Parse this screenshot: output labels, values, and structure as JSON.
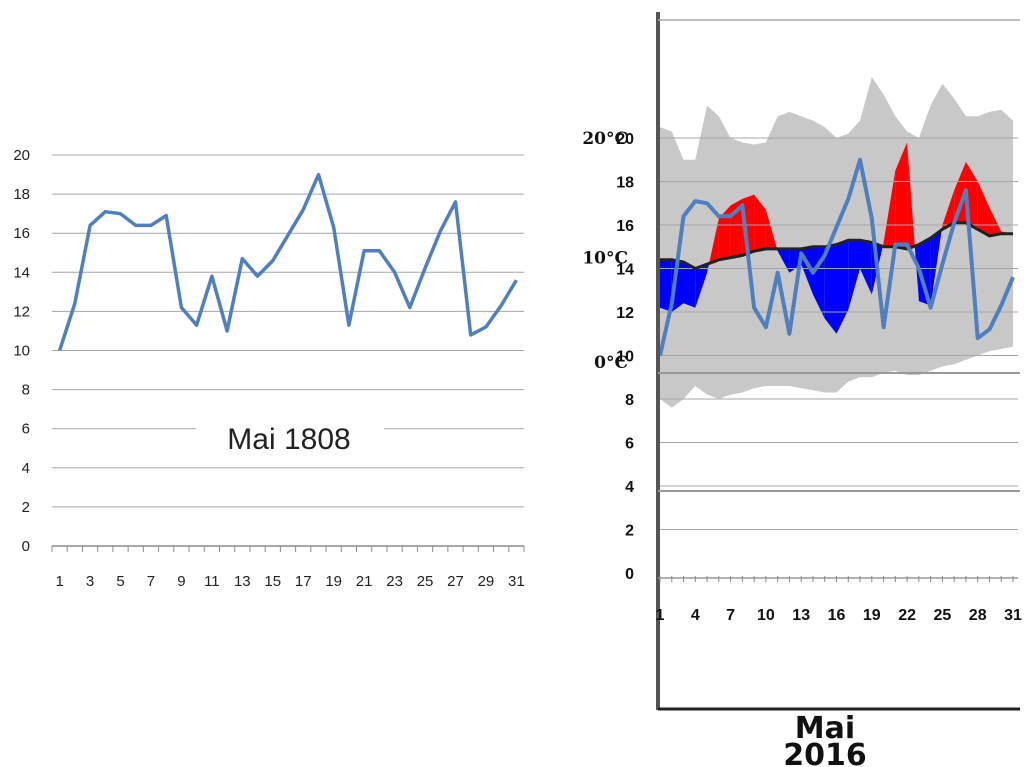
{
  "chart_data": [
    {
      "type": "line",
      "title": "Mai 1808",
      "x": [
        1,
        2,
        3,
        4,
        5,
        6,
        7,
        8,
        9,
        10,
        11,
        12,
        13,
        14,
        15,
        16,
        17,
        18,
        19,
        20,
        21,
        22,
        23,
        24,
        25,
        26,
        27,
        28,
        29,
        30,
        31
      ],
      "xticks": [
        1,
        3,
        5,
        7,
        9,
        11,
        13,
        15,
        17,
        19,
        21,
        23,
        25,
        27,
        29,
        31
      ],
      "yticks": [
        0,
        2,
        4,
        6,
        8,
        10,
        12,
        14,
        16,
        18,
        20
      ],
      "ylim": [
        0,
        20
      ],
      "grid": true,
      "colors": {
        "line": "#4f7fbf",
        "grid": "#a6a6a6"
      },
      "series": [
        {
          "values": [
            10,
            12.4,
            16.4,
            17.1,
            17,
            16.4,
            16.4,
            16.9,
            12.2,
            11.3,
            13.8,
            11,
            14.7,
            13.8,
            14.6,
            15.9,
            17.2,
            19,
            16.3,
            11.3,
            15.1,
            15.1,
            14,
            12.2,
            14.2,
            16.1,
            17.6,
            10.8,
            11.2,
            12.3,
            13.6
          ]
        }
      ]
    },
    {
      "type": "area",
      "title": "Mai\n2016",
      "title_lines": [
        "Mai",
        "2016"
      ],
      "x": [
        1,
        2,
        3,
        4,
        5,
        6,
        7,
        8,
        9,
        10,
        11,
        12,
        13,
        14,
        15,
        16,
        17,
        18,
        19,
        20,
        21,
        22,
        23,
        24,
        25,
        26,
        27,
        28,
        29,
        30,
        31
      ],
      "xticks": [
        1,
        4,
        7,
        10,
        13,
        16,
        19,
        22,
        25,
        28,
        31
      ],
      "yticks": [
        0,
        2,
        4,
        6,
        8,
        10,
        12,
        14,
        16,
        18,
        20
      ],
      "ylim": [
        0,
        20
      ],
      "grid": true,
      "celsius_labels": [
        {
          "text": "20°C",
          "at": 20
        },
        {
          "text": "10°C",
          "at": 14.5
        },
        {
          "text": "0°C",
          "at": 9.7
        }
      ],
      "colors": {
        "band": "#c8c8c8",
        "above": "#ff0000",
        "below": "#0000ff",
        "mean": "#222222",
        "line": "#4f7fbf",
        "grid": "#a6a6a6"
      },
      "band_upper": [
        20.5,
        20.3,
        19,
        19,
        21.5,
        21,
        20,
        19.8,
        19.7,
        19.8,
        21,
        21.2,
        21,
        20.8,
        20.5,
        20,
        20.2,
        20.8,
        22.8,
        22,
        21,
        20.3,
        20,
        21.5,
        22.5,
        21.8,
        21,
        21,
        21.2,
        21.3,
        20.8
      ],
      "band_lower": [
        8,
        7.6,
        8,
        8.6,
        8.2,
        8,
        8.2,
        8.3,
        8.5,
        8.6,
        8.6,
        8.6,
        8.5,
        8.4,
        8.3,
        8.3,
        8.8,
        9,
        9,
        9.2,
        9.3,
        9.1,
        9.1,
        9.3,
        9.5,
        9.6,
        9.8,
        10,
        10.2,
        10.3,
        10.4
      ],
      "mean": [
        14.4,
        14.4,
        14.3,
        14,
        14.2,
        14.4,
        14.5,
        14.6,
        14.8,
        14.9,
        14.9,
        14.9,
        14.9,
        15,
        15,
        15.1,
        15.3,
        15.3,
        15.2,
        15,
        15,
        14.9,
        15.1,
        15.4,
        15.8,
        16.1,
        16.1,
        15.8,
        15.5,
        15.6,
        15.6
      ],
      "daily_mean": [
        12.2,
        12,
        12.4,
        12.2,
        13.8,
        16.3,
        16.9,
        17.2,
        17.4,
        16.7,
        14.8,
        13.8,
        14.2,
        12.8,
        11.7,
        11,
        12.1,
        14,
        12.8,
        15.2,
        18.5,
        19.8,
        12.5,
        12.3,
        16,
        17.6,
        18.9,
        18,
        16.8,
        15.7,
        15.6
      ],
      "series": [
        {
          "values": [
            10,
            12.4,
            16.4,
            17.1,
            17,
            16.4,
            16.4,
            16.9,
            12.2,
            11.3,
            13.8,
            11,
            14.7,
            13.8,
            14.6,
            15.9,
            17.2,
            19,
            16.3,
            11.3,
            15.1,
            15.1,
            14,
            12.2,
            14.2,
            16.1,
            17.6,
            10.8,
            11.2,
            12.3,
            13.6
          ]
        }
      ]
    }
  ]
}
